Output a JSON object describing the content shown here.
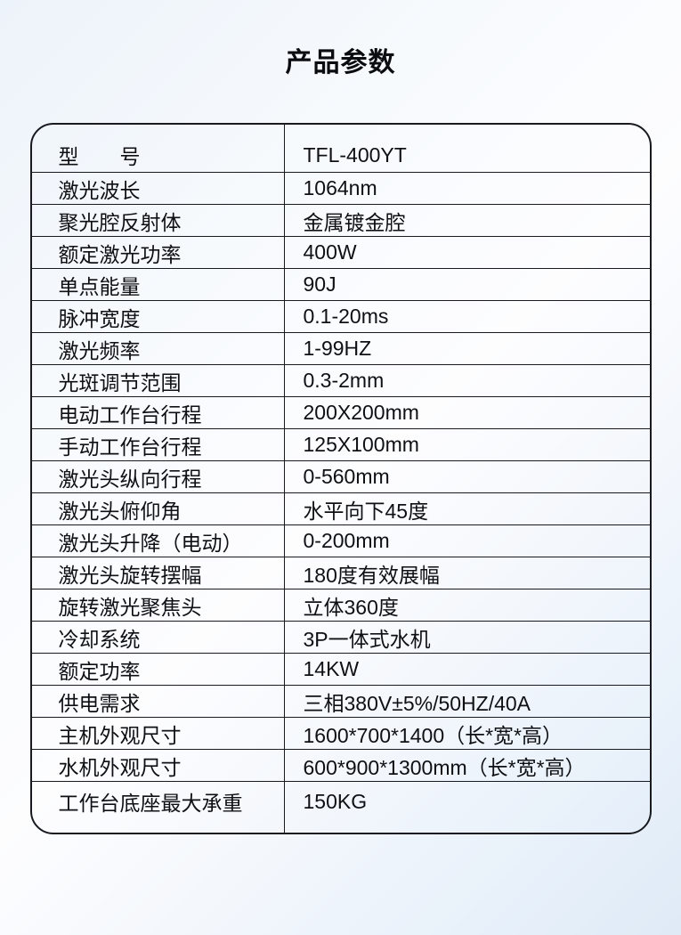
{
  "title": "产品参数",
  "table": {
    "rows": [
      {
        "label": "型　　号",
        "value": "TFL-400YT"
      },
      {
        "label": "激光波长",
        "value": "1064nm"
      },
      {
        "label": "聚光腔反射体",
        "value": "金属镀金腔"
      },
      {
        "label": "额定激光功率",
        "value": "400W"
      },
      {
        "label": "单点能量",
        "value": "90J"
      },
      {
        "label": "脉冲宽度",
        "value": "0.1-20ms"
      },
      {
        "label": "激光频率",
        "value": "1-99HZ"
      },
      {
        "label": "光斑调节范围",
        "value": "0.3-2mm"
      },
      {
        "label": "电动工作台行程",
        "value": "200X200mm"
      },
      {
        "label": "手动工作台行程",
        "value": "125X100mm"
      },
      {
        "label": "激光头纵向行程",
        "value": "0-560mm"
      },
      {
        "label": "激光头俯仰角",
        "value": "水平向下45度"
      },
      {
        "label": "激光头升降（电动）",
        "value": "0-200mm"
      },
      {
        "label": "激光头旋转摆幅",
        "value": "180度有效展幅"
      },
      {
        "label": "旋转激光聚焦头",
        "value": "立体360度"
      },
      {
        "label": "冷却系统",
        "value": "3P一体式水机"
      },
      {
        "label": "额定功率",
        "value": "14KW"
      },
      {
        "label": "供电需求",
        "value": "三相380V±5%/50HZ/40A"
      },
      {
        "label": "主机外观尺寸",
        "value": "1600*700*1400（长*宽*高）"
      },
      {
        "label": "水机外观尺寸",
        "value": "600*900*1300mm（长*宽*高）"
      },
      {
        "label": "工作台底座最大承重",
        "value": "150KG"
      }
    ]
  },
  "colors": {
    "background_top": "#edf3fa",
    "background_bottom": "#dfeaf6",
    "border": "#181a1f",
    "text": "#0e1013"
  }
}
